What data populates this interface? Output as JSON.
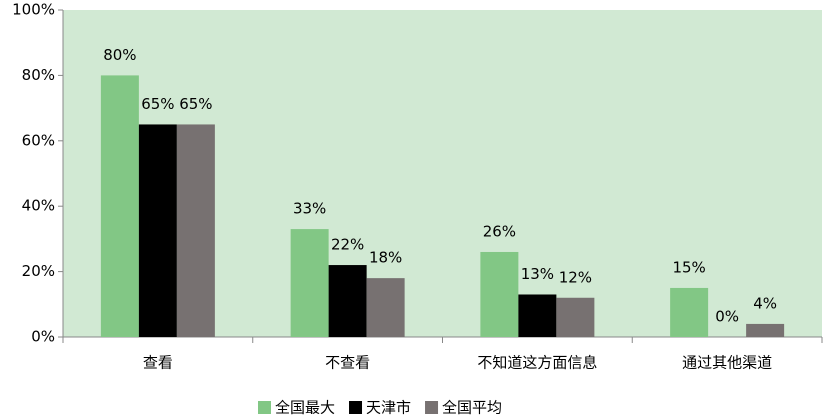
{
  "chart_data": {
    "type": "bar",
    "categories": [
      "查看",
      "不查看",
      "不知道这方面信息",
      "通过其他渠道"
    ],
    "series": [
      {
        "name": "全国最大",
        "color": "#82c785",
        "values": [
          80,
          33,
          26,
          15
        ],
        "value_labels": [
          "80%",
          "33%",
          "26%",
          "15%"
        ]
      },
      {
        "name": "天津市",
        "color": "#000000",
        "values": [
          65,
          22,
          13,
          0
        ],
        "value_labels": [
          "65%",
          "22%",
          "13%",
          "0%"
        ]
      },
      {
        "name": "全国平均",
        "color": "#777171",
        "values": [
          65,
          18,
          12,
          4
        ],
        "value_labels": [
          "65%",
          "18%",
          "12%",
          "4%"
        ]
      }
    ],
    "ylim": [
      0,
      100
    ],
    "yticks": [
      {
        "value": 0,
        "label": "0%"
      },
      {
        "value": 20,
        "label": "20%"
      },
      {
        "value": 40,
        "label": "40%"
      },
      {
        "value": 60,
        "label": "60%"
      },
      {
        "value": 80,
        "label": "80%"
      },
      {
        "value": 100,
        "label": "100%"
      }
    ],
    "legend": "bottom",
    "background": "#d1e9d3"
  }
}
